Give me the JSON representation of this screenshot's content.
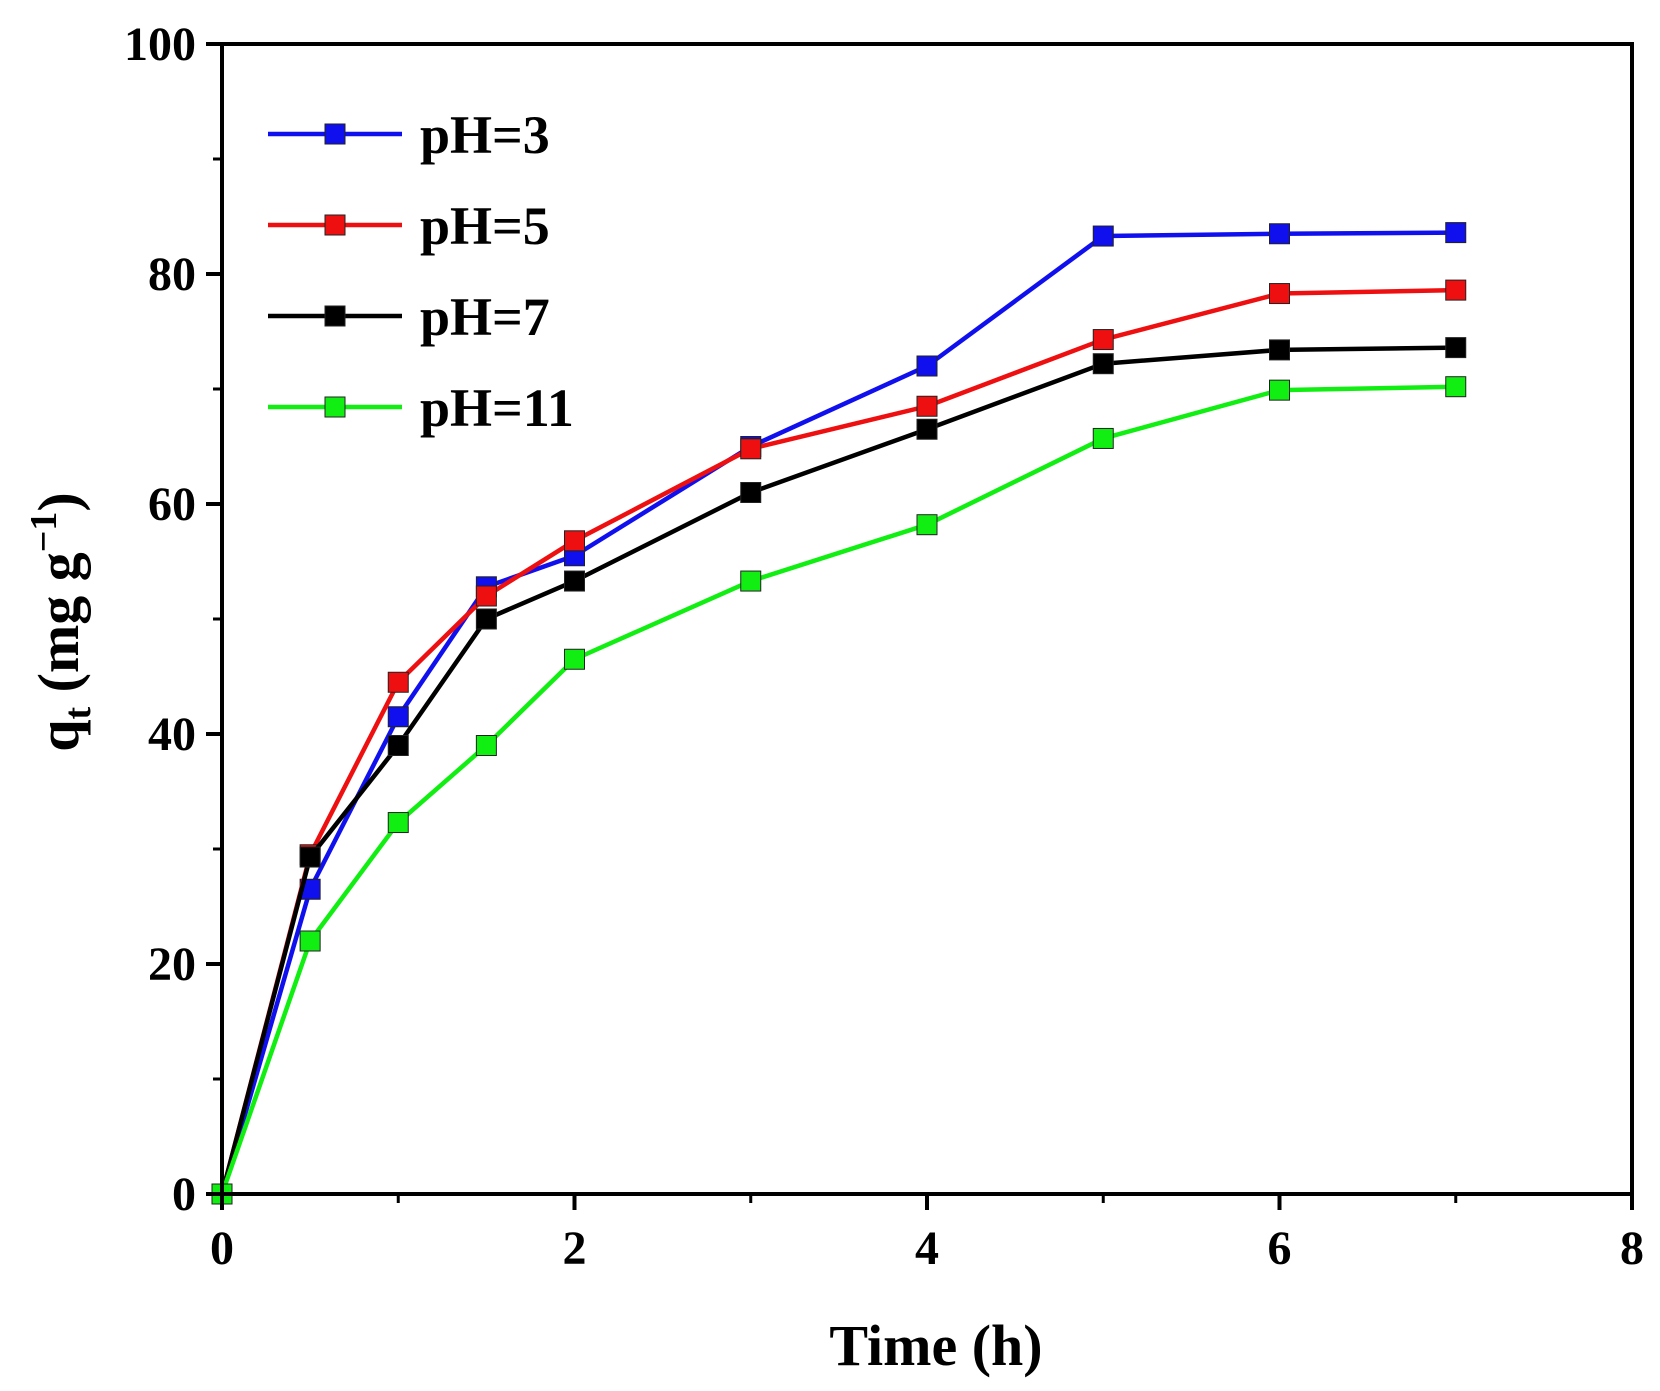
{
  "chart_data": {
    "type": "line",
    "title": "",
    "xlabel": "Time (h)",
    "ylabel_main": "q",
    "ylabel_sub": "t",
    "ylabel_units": " (mg g",
    "ylabel_exp": "−1",
    "ylabel_close": ")",
    "xlim": [
      0,
      8
    ],
    "ylim": [
      0,
      100
    ],
    "xticks": [
      0,
      2,
      4,
      6,
      8
    ],
    "yticks": [
      0,
      20,
      40,
      60,
      80,
      100
    ],
    "xtick_labels": [
      "0",
      "2",
      "4",
      "6",
      "8"
    ],
    "ytick_labels": [
      "0",
      "20",
      "40",
      "60",
      "80",
      "100"
    ],
    "legend_position": "top-left",
    "x": [
      0,
      0.5,
      1,
      1.5,
      2,
      3,
      4,
      5,
      6,
      7
    ],
    "series": [
      {
        "name": "pH=3",
        "color": "#1010ee",
        "values": [
          0,
          26.5,
          41.5,
          52.8,
          55.5,
          65,
          72,
          83.3,
          83.5,
          83.6
        ]
      },
      {
        "name": "pH=5",
        "color": "#ee1010",
        "values": [
          0,
          29.5,
          44.5,
          52,
          56.8,
          64.8,
          68.5,
          74.3,
          78.3,
          78.6
        ]
      },
      {
        "name": "pH=7",
        "color": "#000000",
        "values": [
          0,
          29.3,
          39,
          50,
          53.3,
          61,
          66.5,
          72.2,
          73.4,
          73.6
        ]
      },
      {
        "name": "pH=11",
        "color": "#11ee11",
        "values": [
          0,
          22,
          32.3,
          39,
          46.5,
          53.3,
          58.2,
          65.7,
          69.9,
          70.2
        ]
      }
    ]
  }
}
